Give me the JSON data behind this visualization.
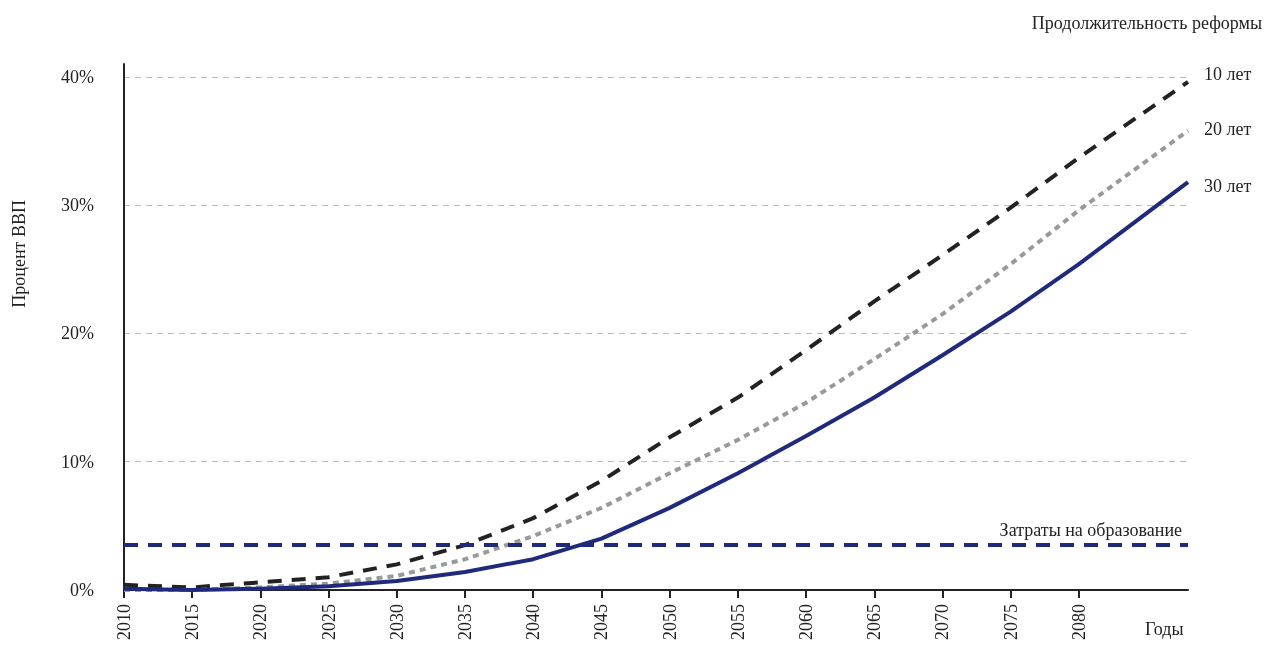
{
  "chart_data": {
    "type": "line",
    "ylabel": "Процент ВВП",
    "xlabel": "Годы",
    "legend_title": "Продолжительность реформы",
    "x": [
      2010,
      2015,
      2020,
      2025,
      2030,
      2035,
      2040,
      2045,
      2050,
      2055,
      2060,
      2065,
      2070,
      2075,
      2080,
      2088
    ],
    "series": [
      {
        "name": "10 лет",
        "color": "#222222",
        "line_style": "dashed",
        "values": [
          0.4,
          0.2,
          0.6,
          1.0,
          2.0,
          3.5,
          5.6,
          8.5,
          11.9,
          15.0,
          18.7,
          22.5,
          26.1,
          29.8,
          33.7,
          39.6
        ]
      },
      {
        "name": "20 лет",
        "color": "#999999",
        "line_style": "dotted",
        "values": [
          0.0,
          0.0,
          0.2,
          0.5,
          1.1,
          2.4,
          4.2,
          6.4,
          9.1,
          11.7,
          14.6,
          18.0,
          21.5,
          25.4,
          29.6,
          35.8
        ]
      },
      {
        "name": "30 лет",
        "color": "#1f2a7c",
        "line_style": "solid",
        "values": [
          0.1,
          0.0,
          0.1,
          0.3,
          0.7,
          1.4,
          2.4,
          4.0,
          6.4,
          9.1,
          12.0,
          15.0,
          18.3,
          21.7,
          25.4,
          31.8
        ]
      }
    ],
    "xlim": [
      2010,
      2088
    ],
    "xticks": [
      2010,
      2015,
      2020,
      2025,
      2030,
      2035,
      2040,
      2045,
      2050,
      2055,
      2060,
      2065,
      2070,
      2075,
      2080
    ],
    "ylim": [
      0,
      41
    ],
    "yticks": [
      {
        "value": 0,
        "label": "0%"
      },
      {
        "value": 10,
        "label": "10%"
      },
      {
        "value": 20,
        "label": "20%"
      },
      {
        "value": 30,
        "label": "30%"
      },
      {
        "value": 40,
        "label": "40%"
      }
    ],
    "ref_lines": [
      {
        "axis": "y",
        "value": 3.5,
        "label": "Затраты на образование",
        "color": "#1f2a7c",
        "line_style": "dashed"
      }
    ],
    "grid": "y",
    "legend": false,
    "marker": "none"
  }
}
